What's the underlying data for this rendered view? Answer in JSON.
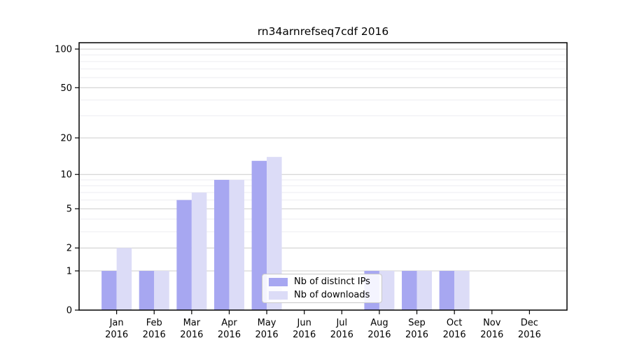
{
  "chart_data": {
    "type": "bar",
    "title": "rn34arnrefseq7cdf 2016",
    "year_label": "2016",
    "categories": [
      "Jan",
      "Feb",
      "Mar",
      "Apr",
      "May",
      "Jun",
      "Jul",
      "Aug",
      "Sep",
      "Oct",
      "Nov",
      "Dec"
    ],
    "series": [
      {
        "name": "Nb of distinct IPs",
        "color": "#a7a7f1",
        "values": [
          1,
          1,
          6,
          9,
          13,
          0,
          0,
          1,
          1,
          1,
          0,
          0
        ]
      },
      {
        "name": "Nb of downloads",
        "color": "#dcdcf7",
        "values": [
          2,
          1,
          7,
          9,
          14,
          0,
          0,
          1,
          1,
          1,
          0,
          0
        ]
      }
    ],
    "yscale": "log1p",
    "ylim": [
      0,
      112
    ],
    "yticks_major": [
      0,
      1,
      2,
      5,
      10,
      20,
      50,
      100
    ],
    "yticks_minor": [
      3,
      4,
      6,
      7,
      8,
      9,
      30,
      40,
      60,
      70,
      80,
      90
    ],
    "grid": "horizontal",
    "legend_position": "lower-center",
    "colors": {
      "grid_major": "#cccccc",
      "grid_minor": "#ededf1",
      "spine": "#000000",
      "tick_label": "#000000"
    }
  }
}
